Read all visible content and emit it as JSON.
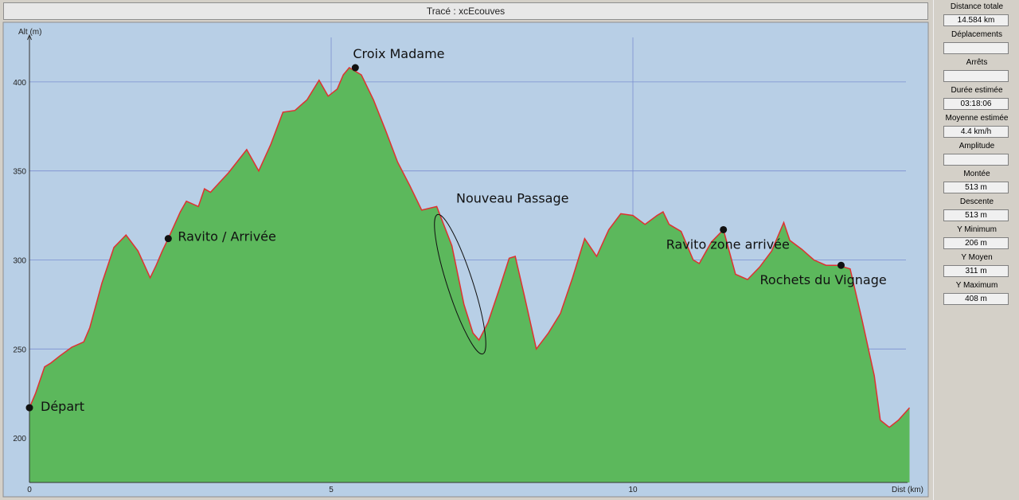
{
  "window": {
    "title": "Tracé : xcEcouves"
  },
  "stats": [
    {
      "label": "Distance totale",
      "value": "14.584 km"
    },
    {
      "label": "Déplacements",
      "value": ""
    },
    {
      "label": "Arrêts",
      "value": ""
    },
    {
      "label": "Durée estimée",
      "value": "03:18:06"
    },
    {
      "label": "Moyenne estimée",
      "value": "4.4 km/h"
    },
    {
      "label": "Amplitude",
      "value": ""
    },
    {
      "label": "Montée",
      "value": "513 m"
    },
    {
      "label": "Descente",
      "value": "513 m"
    },
    {
      "label": "Y Minimum",
      "value": "206 m"
    },
    {
      "label": "Y Moyen",
      "value": "311 m"
    },
    {
      "label": "Y Maximum",
      "value": "408 m"
    }
  ],
  "colors": {
    "area": "#5cb85c",
    "line": "#e03030",
    "plot_bg": "#b8cfe6",
    "grid": "#7a8fd0"
  },
  "chart_data": {
    "type": "area",
    "title": "Tracé : xcEcouves",
    "xlabel": "Dist (km)",
    "ylabel": "Alt (m)",
    "xlim": [
      0,
      14.584
    ],
    "ylim": [
      175,
      425
    ],
    "xticks": [
      0,
      5,
      10
    ],
    "yticks": [
      200,
      250,
      300,
      350,
      400
    ],
    "grid": true,
    "series": [
      {
        "x": [
          0,
          0.1,
          0.25,
          0.35,
          0.5,
          0.7,
          0.9,
          1.0,
          1.2,
          1.4,
          1.6,
          1.8,
          2.0,
          2.1,
          2.2,
          2.3,
          2.5,
          2.6,
          2.8,
          2.9,
          3.0,
          3.3,
          3.6,
          3.8,
          4.0,
          4.2,
          4.4,
          4.6,
          4.8,
          4.95,
          5.1,
          5.2,
          5.3,
          5.4,
          5.5,
          5.7,
          5.9,
          6.1,
          6.3,
          6.5,
          6.75,
          7.0,
          7.2,
          7.35,
          7.45,
          7.6,
          7.8,
          7.95,
          8.05,
          8.2,
          8.4,
          8.6,
          8.8,
          9.0,
          9.2,
          9.4,
          9.6,
          9.8,
          10.0,
          10.2,
          10.4,
          10.5,
          10.6,
          10.8,
          11.0,
          11.1,
          11.3,
          11.5,
          11.7,
          11.9,
          12.1,
          12.3,
          12.5,
          12.6,
          12.8,
          13.0,
          13.2,
          13.4,
          13.6,
          13.8,
          14.0,
          14.1,
          14.25,
          14.4,
          14.584
        ],
        "values": [
          217,
          225,
          240,
          242,
          246,
          251,
          254,
          262,
          287,
          307,
          314,
          305,
          290,
          297,
          305,
          312,
          327,
          333,
          330,
          340,
          338,
          349,
          362,
          350,
          365,
          383,
          384,
          390,
          401,
          392,
          396,
          404,
          408,
          406,
          404,
          390,
          373,
          355,
          342,
          328,
          330,
          308,
          275,
          259,
          255,
          265,
          285,
          301,
          302,
          280,
          250,
          259,
          270,
          290,
          312,
          302,
          317,
          326,
          325,
          320,
          325,
          327,
          320,
          316,
          300,
          298,
          310,
          317,
          292,
          289,
          296,
          305,
          321,
          311,
          306,
          300,
          297,
          297,
          295,
          266,
          235,
          210,
          206,
          210,
          217
        ]
      }
    ],
    "annotations": [
      {
        "text": "Départ",
        "x": 0,
        "y": 217
      },
      {
        "text": "Ravito / Arrivée",
        "x": 2.3,
        "y": 312
      },
      {
        "text": "Croix Madame",
        "x": 5.4,
        "y": 408
      },
      {
        "text": "Nouveau Passage",
        "x": 6.9,
        "y": 330
      },
      {
        "text": "Ravito zone arrivée",
        "x": 11.5,
        "y": 317
      },
      {
        "text": "Rochets du Vignage",
        "x": 13.45,
        "y": 297
      }
    ]
  }
}
